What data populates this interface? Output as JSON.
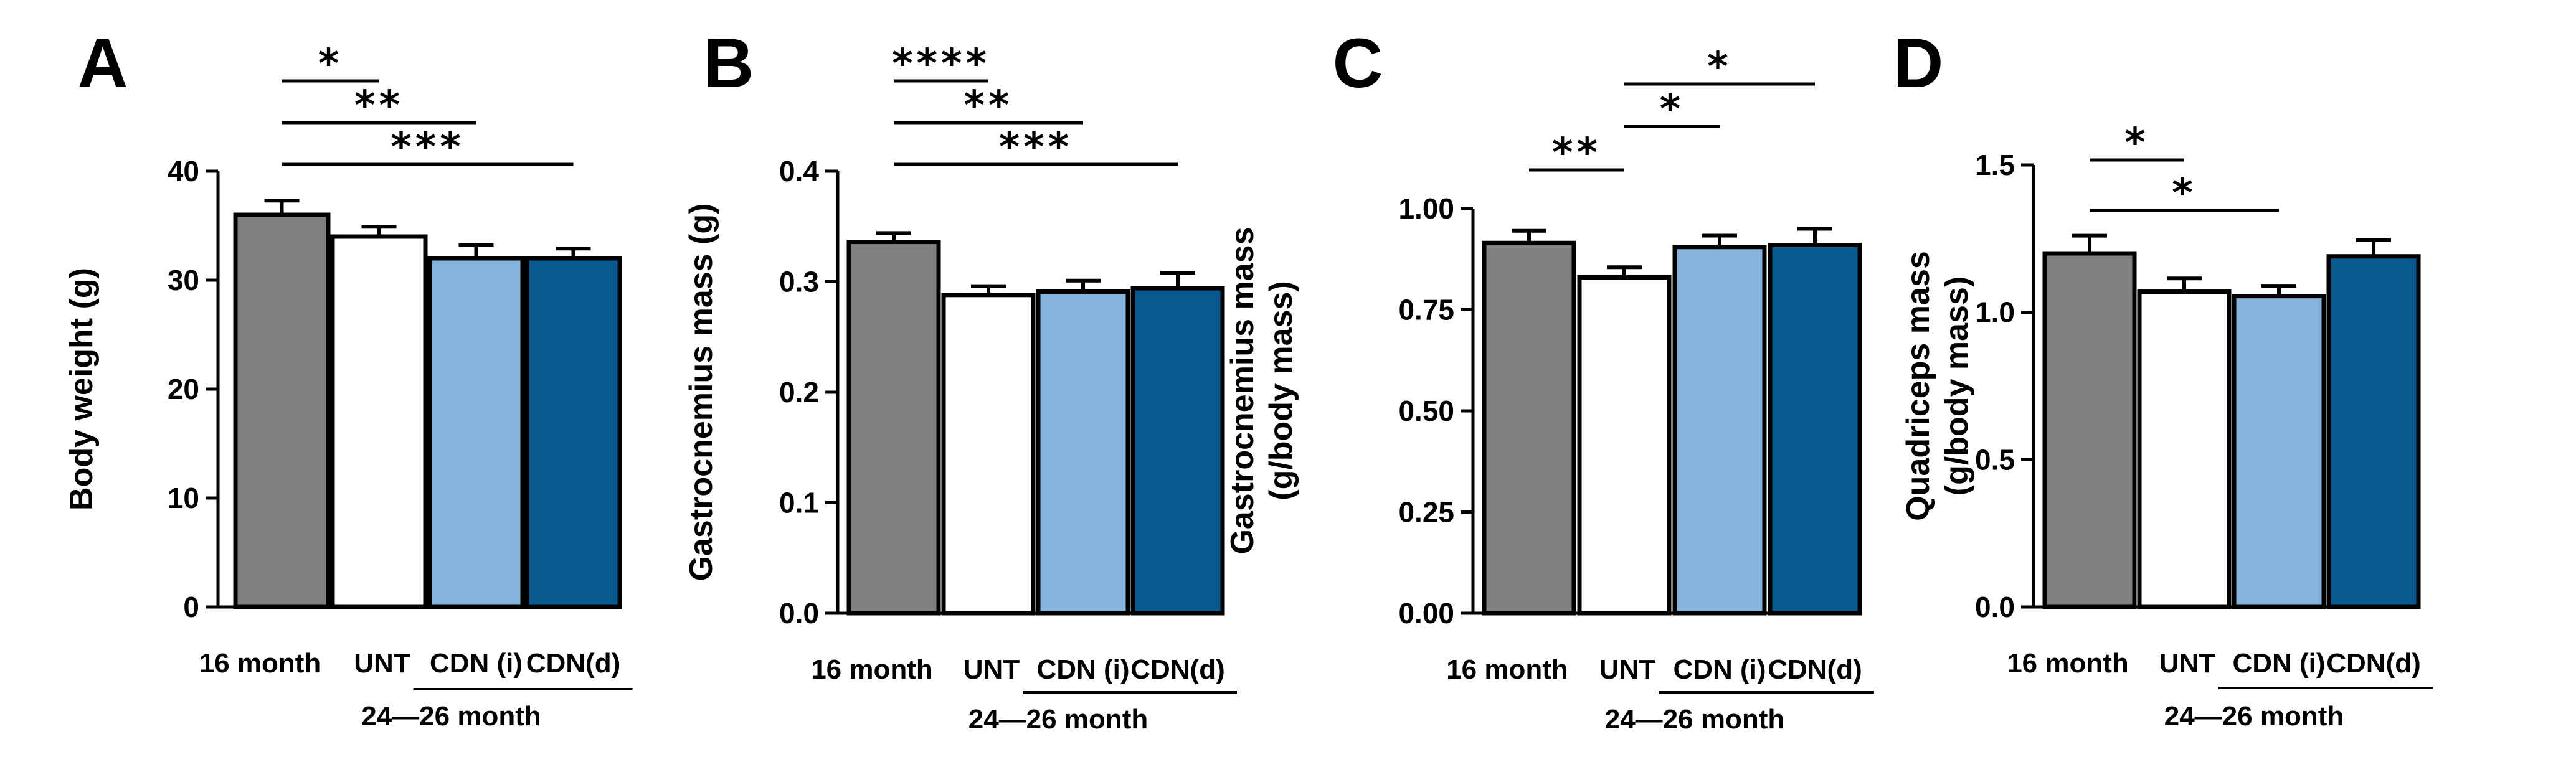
{
  "figure": {
    "colors": {
      "16 month": "#808080",
      "UNT": "#ffffff",
      "CDN (i)": "#86b3db",
      "CDN(d)": "#0b5a8f",
      "stroke": "#000000"
    }
  },
  "chart_data": [
    {
      "panel": "A",
      "type": "bar",
      "ylabel": "Body weight (g)",
      "ylabel_lines": [
        "Body weight (g)"
      ],
      "categories": [
        "16 month",
        "UNT",
        "CDN (i)",
        "CDN(d)"
      ],
      "group_label": "24—26 month",
      "values": [
        36.0,
        34.0,
        32.0,
        32.0
      ],
      "errors": [
        1.3,
        0.9,
        1.2,
        0.9
      ],
      "ylim": [
        0,
        40
      ],
      "ticks": [
        0,
        10,
        20,
        30,
        40
      ],
      "tick_labels": [
        "0",
        "10",
        "20",
        "30",
        "40"
      ],
      "significance": [
        {
          "from": 0,
          "to": 1,
          "label": "*"
        },
        {
          "from": 0,
          "to": 2,
          "label": "**"
        },
        {
          "from": 0,
          "to": 3,
          "label": "***"
        }
      ]
    },
    {
      "panel": "B",
      "type": "bar",
      "ylabel": "Gastrocnemius mass (g)",
      "ylabel_lines": [
        "Gastrocnemius mass (g)"
      ],
      "categories": [
        "16 month",
        "UNT",
        "CDN (i)",
        "CDN(d)"
      ],
      "group_label": "24—26 month",
      "values": [
        0.336,
        0.288,
        0.291,
        0.294
      ],
      "errors": [
        0.008,
        0.008,
        0.01,
        0.014
      ],
      "ylim": [
        0,
        0.4
      ],
      "ticks": [
        0,
        0.1,
        0.2,
        0.3,
        0.4
      ],
      "tick_labels": [
        "0.0",
        "0.1",
        "0.2",
        "0.3",
        "0.4"
      ],
      "significance": [
        {
          "from": 0,
          "to": 1,
          "label": "****"
        },
        {
          "from": 0,
          "to": 2,
          "label": "**"
        },
        {
          "from": 0,
          "to": 3,
          "label": "***"
        }
      ]
    },
    {
      "panel": "C",
      "type": "bar",
      "ylabel": "Gastrocnemius mass (g/body mass)",
      "ylabel_lines": [
        "Gastrocnemius mass",
        "(g/body mass)"
      ],
      "categories": [
        "16 month",
        "UNT",
        "CDN (i)",
        "CDN(d)"
      ],
      "group_label": "24—26 month",
      "values": [
        0.915,
        0.83,
        0.905,
        0.91
      ],
      "errors": [
        0.03,
        0.025,
        0.028,
        0.04
      ],
      "ylim": [
        0,
        1.1
      ],
      "ticks": [
        0,
        0.25,
        0.5,
        0.75,
        1.0
      ],
      "tick_labels": [
        "0.00",
        "0.25",
        "0.50",
        "0.75",
        "1.00"
      ],
      "significance": [
        {
          "from": 0,
          "to": 1,
          "label": "**"
        },
        {
          "from": 1,
          "to": 2,
          "label": "*"
        },
        {
          "from": 1,
          "to": 3,
          "label": "*"
        }
      ]
    },
    {
      "panel": "D",
      "type": "bar",
      "ylabel": "Quadriceps mass (g/body mass)",
      "ylabel_lines": [
        "Quadriceps mass",
        "(g/body mass)"
      ],
      "categories": [
        "16 month",
        "UNT",
        "CDN (i)",
        "CDN(d)"
      ],
      "group_label": "24—26 month",
      "values": [
        1.2,
        1.07,
        1.055,
        1.19
      ],
      "errors": [
        0.06,
        0.045,
        0.035,
        0.055
      ],
      "ylim": [
        0,
        1.5
      ],
      "ticks": [
        0,
        0.5,
        1.0,
        1.5
      ],
      "tick_labels": [
        "0.0",
        "0.5",
        "1.0",
        "1.5"
      ],
      "significance": [
        {
          "from": 0,
          "to": 1,
          "label": "*"
        },
        {
          "from": 0,
          "to": 2,
          "label": "*"
        }
      ]
    }
  ]
}
